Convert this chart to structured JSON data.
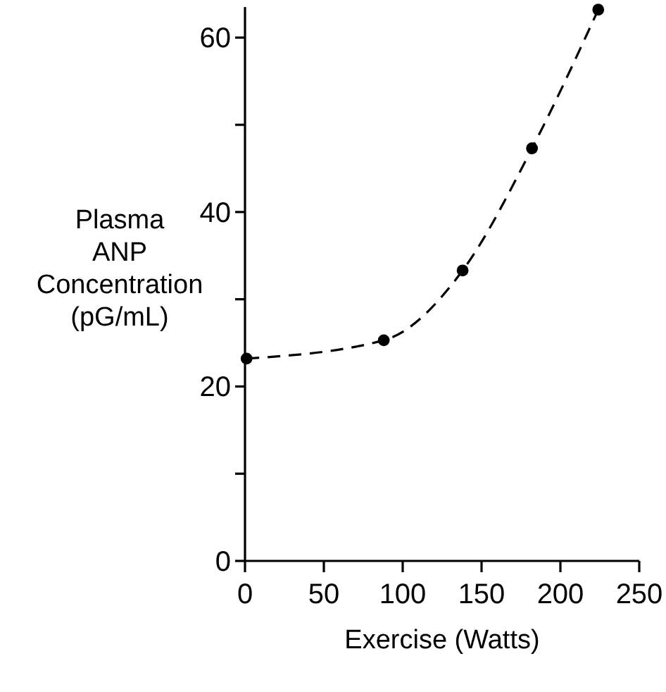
{
  "chart_data": {
    "type": "line",
    "xlabel": "Exercise (Watts)",
    "ylabel": "Plasma\nANP\nConcentration\n(pG/mL)",
    "x": [
      1,
      88,
      138,
      182,
      224
    ],
    "series": [
      {
        "color": "#000000",
        "values": [
          23.2,
          25.3,
          33.3,
          47.3,
          63.2
        ]
      }
    ],
    "xlim": [
      0,
      250
    ],
    "xticks": [
      0,
      50,
      100,
      150,
      200,
      250
    ],
    "ylim": [
      0,
      63.5
    ],
    "yticks": [
      0,
      {
        "value": 10,
        "label": null
      },
      20,
      {
        "value": 30,
        "label": null
      },
      40,
      {
        "value": 50,
        "label": null
      },
      60
    ],
    "marker": "circle",
    "line_style": "dashed",
    "grid": false
  }
}
